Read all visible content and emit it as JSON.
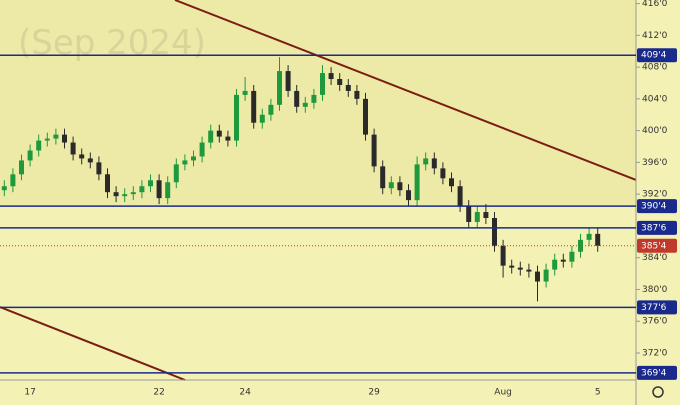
{
  "chart_data": {
    "type": "candlestick",
    "watermark": "(Sep 2024)",
    "categories": [
      null,
      null,
      null,
      "17",
      null,
      null,
      null,
      null,
      null,
      null,
      null,
      null,
      null,
      null,
      null,
      null,
      null,
      null,
      "22",
      null,
      null,
      null,
      null,
      null,
      null,
      null,
      null,
      null,
      "24",
      null,
      null,
      null,
      null,
      null,
      null,
      null,
      null,
      null,
      null,
      null,
      null,
      null,
      null,
      "29",
      null,
      null,
      null,
      null,
      null,
      null,
      null,
      null,
      null,
      null,
      null,
      null,
      null,
      null,
      "Aug",
      null,
      null,
      null,
      null,
      null,
      null,
      null,
      null,
      null,
      null,
      "5"
    ],
    "open": [
      392.5,
      393,
      394.5,
      396.25,
      397.5,
      398.75,
      399,
      399.5,
      398.5,
      397,
      396.5,
      396,
      394.5,
      392.25,
      391.75,
      392,
      392.25,
      393,
      393.75,
      391.5,
      393.5,
      395.75,
      396.25,
      396.75,
      398.5,
      400,
      399.25,
      398.75,
      404.5,
      405,
      401,
      402,
      403.25,
      407.5,
      405,
      403,
      403.5,
      404.5,
      407.25,
      406.5,
      405.75,
      405,
      404,
      399.5,
      395.5,
      392.75,
      393.5,
      392.5,
      391.25,
      395.75,
      396.5,
      395.25,
      394,
      393,
      390.5,
      388.5,
      389.75,
      389,
      385.5,
      383,
      382.75,
      382.5,
      382.25,
      381,
      382.5,
      383.75,
      383.5,
      384.75,
      386.25,
      387
    ],
    "high": [
      393.75,
      395.25,
      397,
      398.25,
      399.5,
      399.75,
      400.25,
      400.25,
      399.25,
      397.75,
      397.25,
      396.75,
      395.25,
      393,
      392.75,
      393,
      393.75,
      394.5,
      394.5,
      394.25,
      396.5,
      397,
      397.5,
      399.25,
      400.75,
      400.75,
      400,
      405.25,
      406.75,
      405.75,
      402.75,
      404,
      409.25,
      408.25,
      405.75,
      404.25,
      405.25,
      408.25,
      408,
      407.25,
      406.5,
      405.75,
      404.75,
      400.25,
      396.25,
      394.25,
      394.25,
      393.25,
      396.75,
      397.25,
      397.25,
      396,
      394.75,
      393.75,
      391.25,
      390.5,
      390.75,
      389.75,
      386.25,
      383.75,
      383.5,
      383.25,
      383,
      383.25,
      384.5,
      384.5,
      385.5,
      387,
      387.75,
      387.75
    ],
    "low": [
      391.75,
      392.25,
      393.75,
      395.5,
      396.75,
      398,
      398.25,
      397.75,
      396.25,
      395.75,
      395.25,
      393.75,
      391.5,
      391,
      391,
      391.25,
      391.5,
      392.25,
      390.75,
      390.75,
      392.75,
      395,
      395.5,
      396,
      397.75,
      398.5,
      398,
      398,
      403.75,
      400.25,
      400.25,
      401.25,
      402.5,
      404.25,
      402.25,
      402.25,
      402.75,
      403.75,
      405.75,
      405,
      404.25,
      403.25,
      398.75,
      394.75,
      392,
      392,
      391.75,
      390.5,
      390.5,
      395,
      394.5,
      393.25,
      392.25,
      389.75,
      387.75,
      387.75,
      388.25,
      384.75,
      381.5,
      382,
      381.75,
      381.5,
      378.5,
      380.25,
      381.75,
      382.75,
      382.75,
      384,
      385.5,
      384.75
    ],
    "close": [
      393,
      394.5,
      396.25,
      397.5,
      398.75,
      399,
      399.5,
      398.5,
      397,
      396.5,
      396,
      394.5,
      392.25,
      391.75,
      392,
      392.25,
      393,
      393.75,
      391.5,
      393.5,
      395.75,
      396.25,
      396.75,
      398.5,
      400,
      399.25,
      398.75,
      404.5,
      405,
      401,
      402,
      403.25,
      407.5,
      405,
      403,
      403.5,
      404.5,
      407.25,
      406.5,
      405.75,
      405,
      404,
      399.5,
      395.5,
      392.75,
      393.5,
      392.5,
      391.25,
      395.75,
      396.5,
      395.25,
      394,
      393,
      390.5,
      388.5,
      389.75,
      389,
      385.5,
      383,
      382.75,
      382.5,
      382.25,
      381,
      382.5,
      383.75,
      383.5,
      384.75,
      386.25,
      387,
      385.5
    ],
    "up_color": "#1e9a3c",
    "down_color": "#2a2a2a",
    "ylim": [
      368.6,
      416.45
    ],
    "yticks": [
      {
        "value": 416,
        "label": "416'0"
      },
      {
        "value": 412,
        "label": "412'0"
      },
      {
        "value": 408,
        "label": "408'0"
      },
      {
        "value": 404,
        "label": "404'0"
      },
      {
        "value": 400,
        "label": "400'0"
      },
      {
        "value": 396,
        "label": "396'0"
      },
      {
        "value": 392,
        "label": "392'0"
      },
      {
        "value": 384,
        "label": "384'0"
      },
      {
        "value": 380,
        "label": "380'0"
      },
      {
        "value": 376,
        "label": "376'0"
      },
      {
        "value": 372,
        "label": "372'0"
      }
    ],
    "levels": [
      {
        "value": 409.5,
        "label": "409'4"
      },
      {
        "value": 390.5,
        "label": "390'4"
      },
      {
        "value": 387.75,
        "label": "387'6"
      },
      {
        "value": 377.75,
        "label": "377'6"
      },
      {
        "value": 369.5,
        "label": "369'4"
      }
    ],
    "level_color": "#1a2a8c",
    "last_price": {
      "value": 385.5,
      "label": "385'4"
    },
    "last_price_color": "#c0392b"
  }
}
